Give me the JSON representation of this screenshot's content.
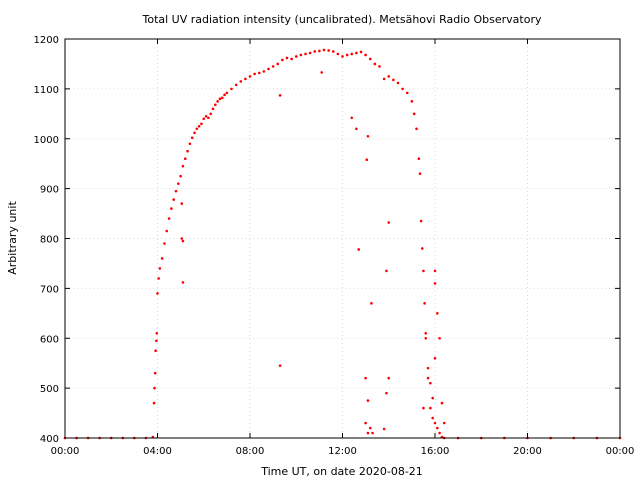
{
  "chart_data": {
    "type": "scatter",
    "title": "Total UV radiation intensity (uncalibrated). Metsähovi Radio Observatory",
    "xlabel": "Time UT, on date 2020-08-21",
    "ylabel": "Arbitrary unit",
    "xlim": [
      0,
      24
    ],
    "ylim": [
      400,
      1200
    ],
    "x_ticks": [
      {
        "value": 0,
        "label": "00:00"
      },
      {
        "value": 4,
        "label": "04:00"
      },
      {
        "value": 8,
        "label": "08:00"
      },
      {
        "value": 12,
        "label": "12:00"
      },
      {
        "value": 16,
        "label": "16:00"
      },
      {
        "value": 20,
        "label": "20:00"
      },
      {
        "value": 24,
        "label": "00:00"
      }
    ],
    "y_ticks": [
      400,
      500,
      600,
      700,
      800,
      900,
      1000,
      1100,
      1200
    ],
    "grid": true,
    "marker_color": "#ff0000",
    "series": [
      {
        "x_unit": "hours UT",
        "points": [
          [
            0.0,
            400
          ],
          [
            0.5,
            400
          ],
          [
            1.0,
            400
          ],
          [
            1.5,
            400
          ],
          [
            2.0,
            400
          ],
          [
            2.5,
            400
          ],
          [
            3.0,
            400
          ],
          [
            3.5,
            400
          ],
          [
            3.8,
            402
          ],
          [
            3.85,
            470
          ],
          [
            3.87,
            500
          ],
          [
            3.9,
            530
          ],
          [
            3.92,
            575
          ],
          [
            3.95,
            595
          ],
          [
            3.97,
            610
          ],
          [
            4.0,
            690
          ],
          [
            4.05,
            720
          ],
          [
            4.1,
            740
          ],
          [
            4.2,
            760
          ],
          [
            4.3,
            790
          ],
          [
            4.4,
            815
          ],
          [
            4.5,
            840
          ],
          [
            4.6,
            860
          ],
          [
            4.7,
            878
          ],
          [
            4.8,
            895
          ],
          [
            4.9,
            910
          ],
          [
            5.0,
            925
          ],
          [
            5.1,
            945
          ],
          [
            5.2,
            960
          ],
          [
            5.3,
            975
          ],
          [
            5.4,
            990
          ],
          [
            5.5,
            1002
          ],
          [
            5.6,
            1012
          ],
          [
            5.7,
            1020
          ],
          [
            5.8,
            1025
          ],
          [
            5.9,
            1030
          ],
          [
            6.0,
            1040
          ],
          [
            6.1,
            1045
          ],
          [
            6.2,
            1042
          ],
          [
            6.3,
            1050
          ],
          [
            6.4,
            1060
          ],
          [
            6.5,
            1068
          ],
          [
            6.6,
            1075
          ],
          [
            6.7,
            1080
          ],
          [
            6.8,
            1082
          ],
          [
            6.9,
            1088
          ],
          [
            7.0,
            1092
          ],
          [
            7.2,
            1100
          ],
          [
            7.4,
            1108
          ],
          [
            7.6,
            1115
          ],
          [
            7.8,
            1120
          ],
          [
            8.0,
            1125
          ],
          [
            8.2,
            1130
          ],
          [
            8.4,
            1132
          ],
          [
            8.6,
            1135
          ],
          [
            8.8,
            1140
          ],
          [
            9.0,
            1145
          ],
          [
            9.2,
            1150
          ],
          [
            9.4,
            1158
          ],
          [
            9.6,
            1162
          ],
          [
            9.8,
            1160
          ],
          [
            10.0,
            1165
          ],
          [
            10.2,
            1168
          ],
          [
            10.4,
            1170
          ],
          [
            10.6,
            1172
          ],
          [
            10.8,
            1175
          ],
          [
            11.0,
            1176
          ],
          [
            11.2,
            1178
          ],
          [
            11.4,
            1177
          ],
          [
            11.6,
            1175
          ],
          [
            11.8,
            1170
          ],
          [
            12.0,
            1165
          ],
          [
            12.2,
            1168
          ],
          [
            12.4,
            1170
          ],
          [
            12.6,
            1172
          ],
          [
            12.8,
            1174
          ],
          [
            13.0,
            1168
          ],
          [
            13.2,
            1160
          ],
          [
            13.4,
            1150
          ],
          [
            13.6,
            1145
          ],
          [
            13.8,
            1120
          ],
          [
            14.0,
            1125
          ],
          [
            14.2,
            1118
          ],
          [
            14.4,
            1112
          ],
          [
            14.6,
            1100
          ],
          [
            14.8,
            1092
          ],
          [
            15.0,
            1075
          ],
          [
            15.1,
            1050
          ],
          [
            15.2,
            1020
          ],
          [
            15.3,
            960
          ],
          [
            15.35,
            930
          ],
          [
            15.4,
            835
          ],
          [
            15.45,
            780
          ],
          [
            15.5,
            735
          ],
          [
            15.55,
            670
          ],
          [
            15.6,
            610
          ],
          [
            15.7,
            520
          ],
          [
            15.8,
            460
          ],
          [
            15.9,
            440
          ],
          [
            16.0,
            430
          ],
          [
            16.1,
            420
          ],
          [
            16.2,
            410
          ],
          [
            16.3,
            402
          ],
          [
            16.4,
            400
          ],
          [
            17.0,
            400
          ],
          [
            18.0,
            400
          ],
          [
            19.0,
            400
          ],
          [
            20.0,
            400
          ],
          [
            21.0,
            400
          ],
          [
            22.0,
            400
          ],
          [
            23.0,
            400
          ],
          [
            24.0,
            400
          ],
          [
            5.05,
            870
          ],
          [
            5.05,
            800
          ],
          [
            5.1,
            795
          ],
          [
            5.1,
            712
          ],
          [
            9.3,
            1087
          ],
          [
            9.3,
            545
          ],
          [
            11.1,
            1133
          ],
          [
            12.4,
            1042
          ],
          [
            12.6,
            1020
          ],
          [
            12.7,
            778
          ],
          [
            13.1,
            1005
          ],
          [
            13.05,
            958
          ],
          [
            13.25,
            670
          ],
          [
            13.0,
            520
          ],
          [
            13.1,
            475
          ],
          [
            13.0,
            430
          ],
          [
            13.1,
            410
          ],
          [
            13.2,
            420
          ],
          [
            13.3,
            410
          ],
          [
            13.9,
            735
          ],
          [
            14.0,
            832
          ],
          [
            14.0,
            520
          ],
          [
            13.8,
            418
          ],
          [
            13.9,
            490
          ],
          [
            15.5,
            460
          ],
          [
            15.6,
            600
          ],
          [
            15.7,
            540
          ],
          [
            16.0,
            735
          ],
          [
            16.0,
            710
          ],
          [
            16.1,
            650
          ],
          [
            16.2,
            600
          ],
          [
            16.3,
            470
          ],
          [
            16.4,
            430
          ],
          [
            15.8,
            510
          ],
          [
            15.9,
            480
          ],
          [
            16.0,
            560
          ]
        ]
      }
    ]
  }
}
